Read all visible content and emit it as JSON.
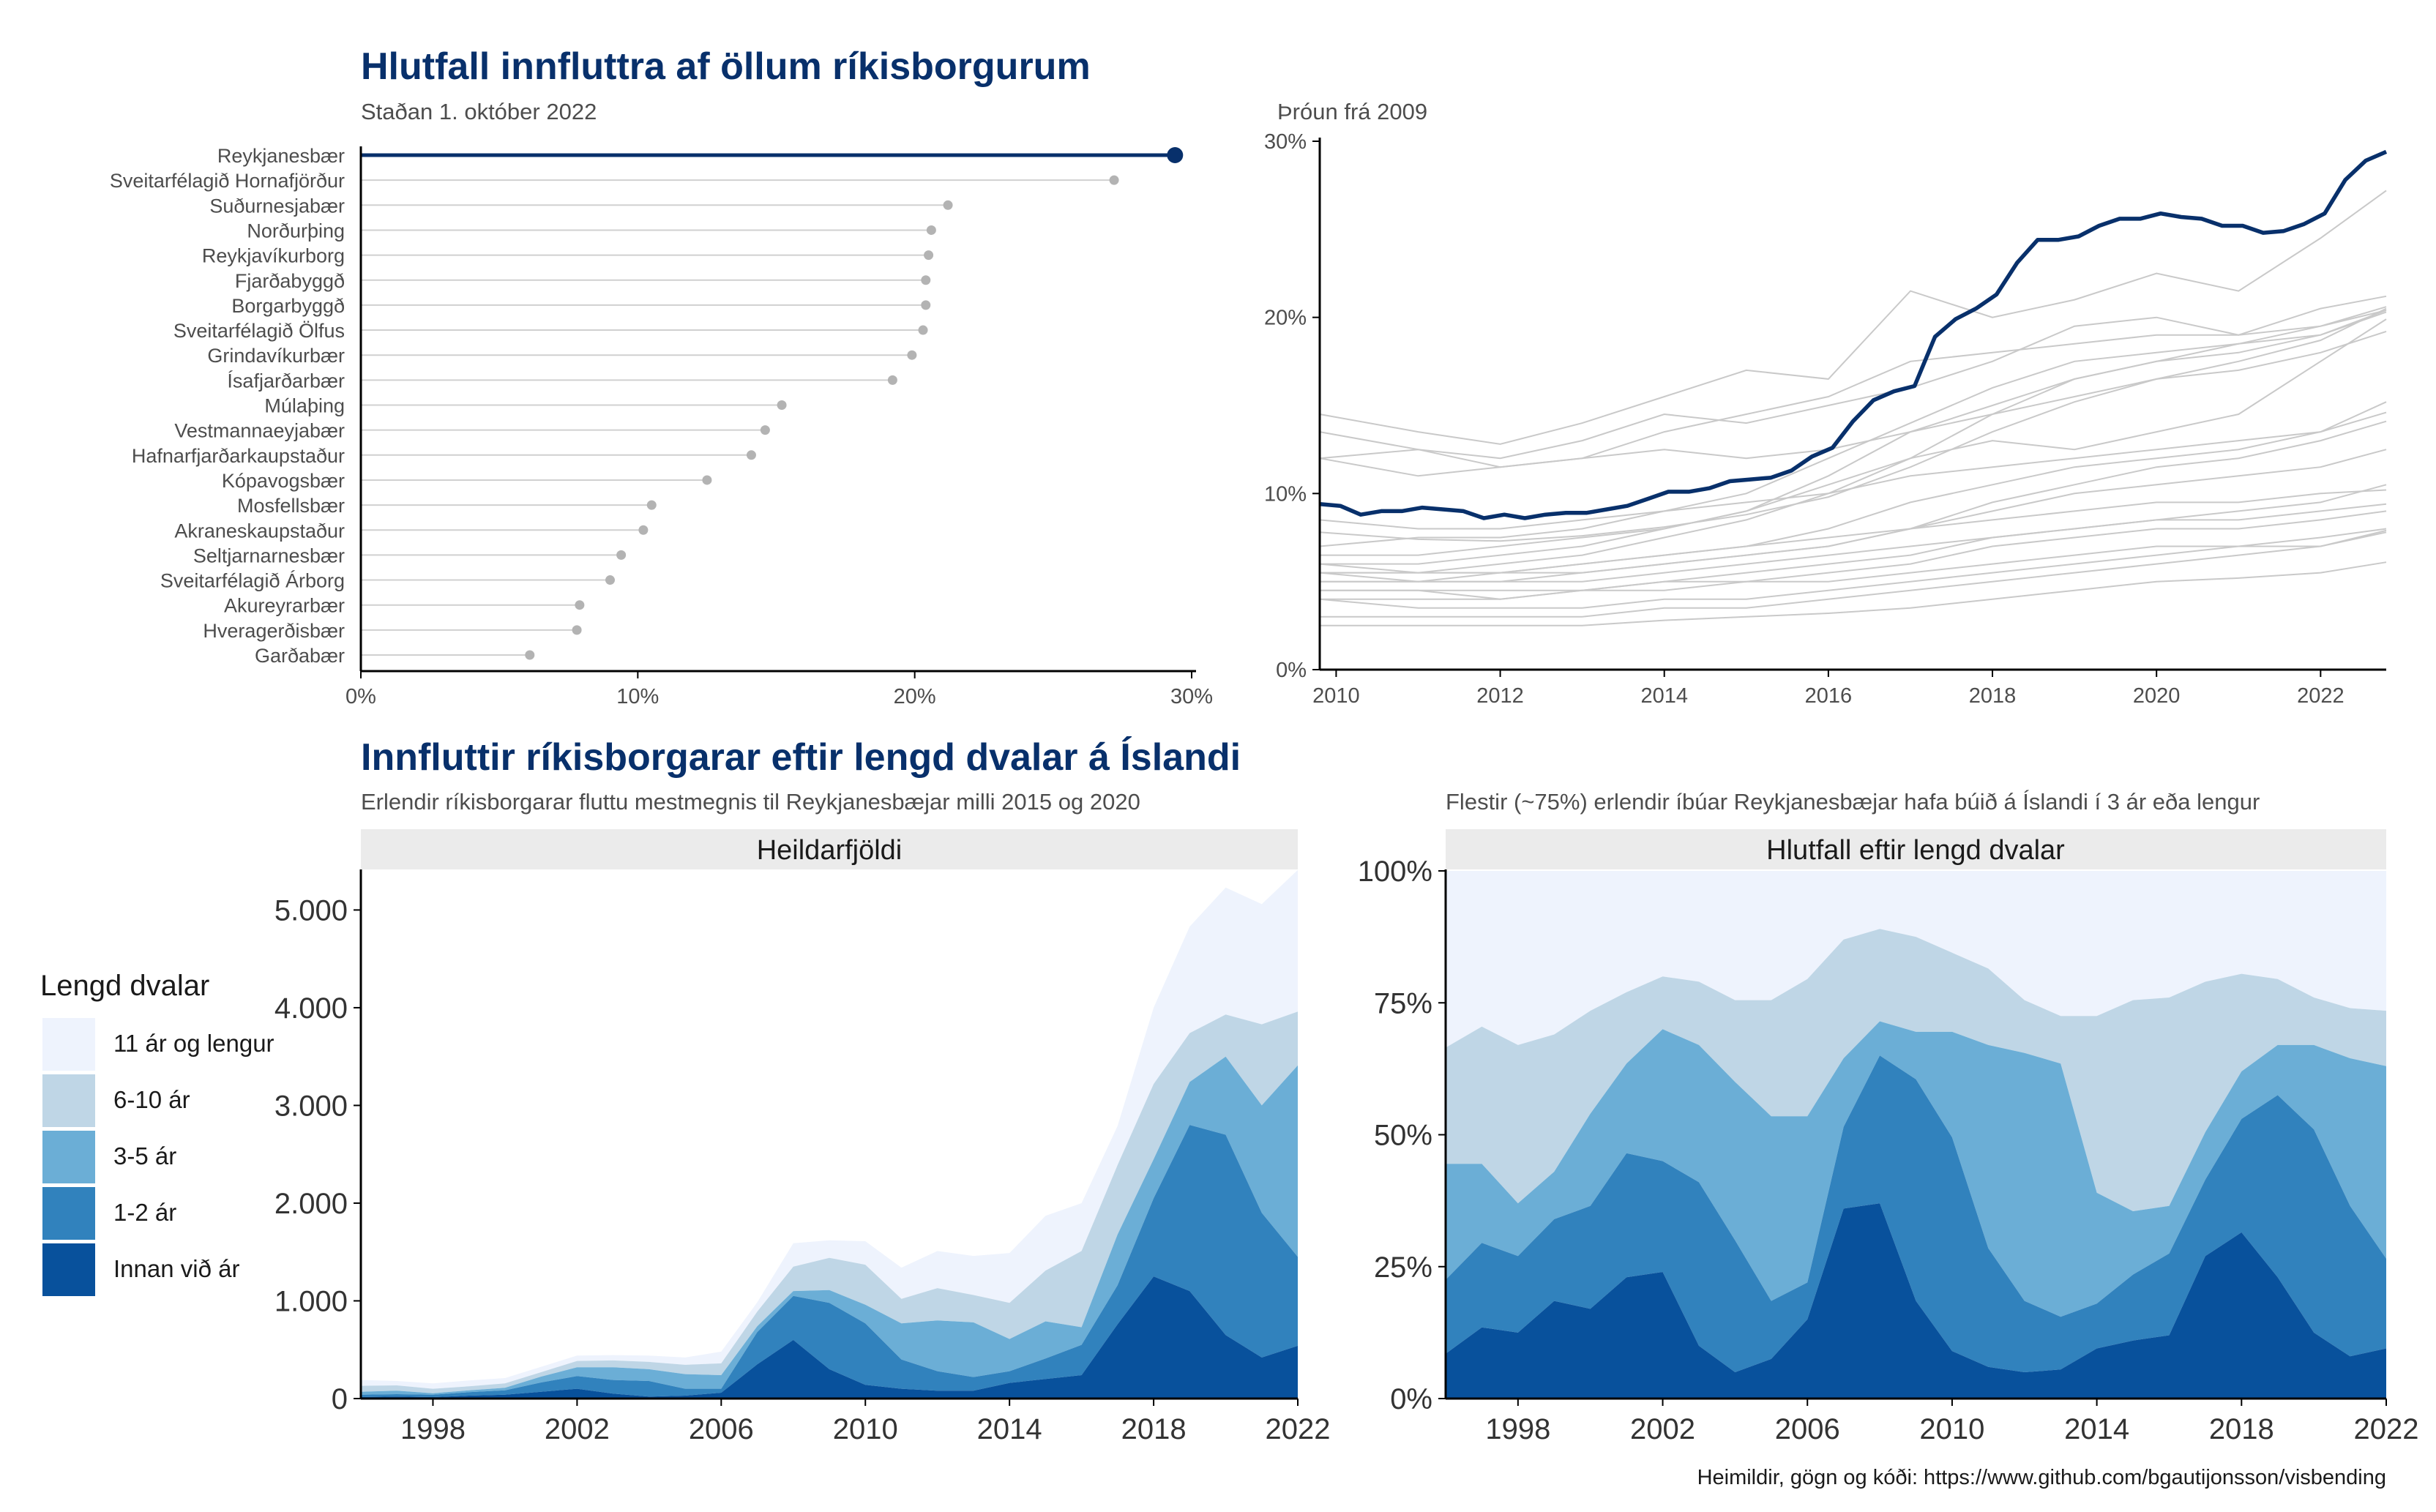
{
  "titles": {
    "top_title": "Hlutfall innfluttra af öllum ríkisborgurum",
    "top_left_subtitle": "Staðan 1. október 2022",
    "top_right_subtitle": "Þróun frá 2009",
    "bottom_title": "Innfluttir ríkisborgarar eftir lengd dvalar á Íslandi",
    "bottom_left_subtitle": "Erlendir ríkisborgarar fluttu mestmegnis til Reykjanesbæjar milli 2015 og 2020",
    "bottom_right_subtitle": "Flestir (~75%) erlendir íbúar Reykjanesbæjar hafa búið á Íslandi í 3 ár eða lengur",
    "strip_left": "Heildarfjöldi",
    "strip_right": "Hlutfall eftir lengd dvalar",
    "legend_title": "Lengd dvalar",
    "caption": "Heimildir, gögn og kóði: https://www.github.com/bgautijonsson/visbending"
  },
  "colors": {
    "highlight": "#08306b",
    "other_points": "#b3b3b3",
    "other_lines": "#c9c9c9",
    "strip_bg": "#ebebeb",
    "fills": [
      "#eef3fd",
      "#bfd6e6",
      "#6baed6",
      "#3182bd",
      "#08519c"
    ]
  },
  "chart_data": [
    {
      "type": "lollipop",
      "title": "Hlutfall innfluttra af öllum ríkisborgurum",
      "subtitle": "Staðan 1. október 2022",
      "highlight": "Reykjanesbær",
      "xlim": [
        0,
        30
      ],
      "xticks": [
        "0%",
        "10%",
        "20%",
        "30%"
      ],
      "categories": [
        "Reykjanesbær",
        "Sveitarfélagið Hornafjörður",
        "Suðurnesjabær",
        "Norðurþing",
        "Reykjavíkurborg",
        "Fjarðabyggð",
        "Borgarbyggð",
        "Sveitarfélagið Ölfus",
        "Grindavíkurbær",
        "Ísafjarðarbær",
        "Múlaþing",
        "Vestmannaeyjabær",
        "Hafnarfjarðarkaupstaður",
        "Kópavogsbær",
        "Mosfellsbær",
        "Akraneskaupstaður",
        "Seltjarnarnesbær",
        "Sveitarfélagið Árborg",
        "Akureyrarbær",
        "Hveragerðisbær",
        "Garðabær"
      ],
      "values": [
        29.4,
        27.2,
        21.2,
        20.6,
        20.5,
        20.4,
        20.4,
        20.3,
        19.9,
        19.2,
        15.2,
        14.6,
        14.1,
        12.5,
        10.5,
        10.2,
        9.4,
        9.0,
        7.9,
        7.8,
        6.1
      ]
    },
    {
      "type": "line",
      "subtitle": "Þróun frá 2009",
      "xlim": [
        2009.8,
        2022.8
      ],
      "ylim": [
        0,
        30
      ],
      "xticks": [
        2010,
        2012,
        2014,
        2016,
        2018,
        2020,
        2022
      ],
      "yticks": [
        "0%",
        "10%",
        "20%",
        "30%"
      ],
      "highlight": {
        "name": "Reykjanesbær",
        "x": [
          2009.8,
          2010.05,
          2010.3,
          2010.55,
          2010.8,
          2011.05,
          2011.3,
          2011.55,
          2011.8,
          2012.05,
          2012.3,
          2012.55,
          2012.8,
          2013.05,
          2013.3,
          2013.55,
          2013.8,
          2014.05,
          2014.3,
          2014.55,
          2014.8,
          2015.05,
          2015.3,
          2015.55,
          2015.8,
          2016.05,
          2016.3,
          2016.55,
          2016.8,
          2017.05,
          2017.3,
          2017.55,
          2017.8,
          2018.05,
          2018.3,
          2018.55,
          2018.8,
          2019.05,
          2019.3,
          2019.55,
          2019.8,
          2020.05,
          2020.3,
          2020.55,
          2020.8,
          2021.05,
          2021.3,
          2021.55,
          2021.8,
          2022.05,
          2022.3,
          2022.55,
          2022.8
        ],
        "y": [
          9.4,
          9.3,
          8.8,
          9.0,
          9.0,
          9.2,
          9.1,
          9.0,
          8.6,
          8.8,
          8.6,
          8.8,
          8.9,
          8.9,
          9.1,
          9.3,
          9.7,
          10.1,
          10.1,
          10.3,
          10.7,
          10.8,
          10.9,
          11.3,
          12.1,
          12.6,
          14.1,
          15.3,
          15.8,
          16.1,
          18.9,
          19.9,
          20.5,
          21.3,
          23.1,
          24.4,
          24.4,
          24.6,
          25.2,
          25.6,
          25.6,
          25.9,
          25.7,
          25.6,
          25.2,
          25.2,
          24.8,
          24.9,
          25.3,
          25.9,
          27.8,
          28.9,
          29.4
        ]
      },
      "others_years": [
        2009.8,
        2011,
        2012,
        2013,
        2014,
        2015,
        2016,
        2017,
        2018,
        2019,
        2020,
        2021,
        2022,
        2022.8
      ],
      "others": [
        {
          "name": "Sveitarfélagið Hornafjörður",
          "values": [
            14.5,
            13.5,
            12.8,
            14.0,
            15.5,
            17.0,
            16.5,
            21.5,
            20.0,
            21.0,
            22.5,
            21.5,
            24.5,
            27.2
          ]
        },
        {
          "name": "Suðurnesjabær",
          "values": [
            12.0,
            12.5,
            12.0,
            13.0,
            14.5,
            14.0,
            15.0,
            16.0,
            17.5,
            19.5,
            20.0,
            19.0,
            20.5,
            21.2
          ]
        },
        {
          "name": "Norðurþing",
          "values": [
            7.0,
            7.5,
            7.5,
            8.0,
            9.0,
            10.0,
            12.0,
            14.0,
            16.0,
            17.5,
            18.0,
            18.5,
            19.5,
            20.6
          ]
        },
        {
          "name": "Reykjavíkurborg",
          "values": [
            7.8,
            7.4,
            7.3,
            7.6,
            8.1,
            8.8,
            9.8,
            11.5,
            13.5,
            15.2,
            16.5,
            17.5,
            18.7,
            20.5
          ]
        },
        {
          "name": "Fjarðabyggð",
          "values": [
            13.5,
            12.5,
            11.5,
            12.0,
            13.5,
            14.5,
            15.5,
            17.5,
            18.0,
            18.5,
            19.0,
            19.0,
            19.5,
            20.4
          ]
        },
        {
          "name": "Borgarbyggð",
          "values": [
            5.5,
            5.5,
            6.0,
            6.5,
            7.5,
            8.5,
            10.0,
            12.0,
            14.5,
            16.5,
            17.5,
            18.5,
            19.0,
            20.4
          ]
        },
        {
          "name": "Sveitarfélagið Ölfus",
          "values": [
            6.0,
            6.0,
            6.5,
            7.0,
            8.0,
            9.0,
            11.0,
            13.5,
            15.0,
            16.5,
            17.5,
            18.0,
            19.0,
            20.3
          ]
        },
        {
          "name": "Grindavíkurbær",
          "values": [
            6.5,
            6.5,
            7.0,
            7.5,
            8.0,
            9.0,
            10.5,
            12.0,
            13.0,
            12.5,
            13.5,
            14.5,
            17.5,
            19.9
          ]
        },
        {
          "name": "Ísafjarðarbær",
          "values": [
            12.0,
            11.0,
            11.5,
            12.0,
            12.5,
            12.0,
            12.5,
            13.5,
            14.5,
            15.5,
            16.5,
            17.0,
            18.0,
            19.2
          ]
        },
        {
          "name": "Múlaþing",
          "values": [
            5.0,
            5.0,
            5.5,
            6.0,
            6.5,
            7.0,
            8.0,
            9.5,
            10.5,
            11.5,
            12.0,
            12.5,
            13.5,
            15.2
          ]
        },
        {
          "name": "Vestmannaeyjabær",
          "values": [
            8.5,
            8.0,
            8.0,
            8.5,
            9.0,
            9.5,
            10.0,
            11.0,
            11.5,
            12.0,
            12.5,
            13.0,
            13.5,
            14.6
          ]
        },
        {
          "name": "Hafnarfjarðarkaupstaður",
          "values": [
            5.5,
            5.5,
            5.5,
            5.5,
            6.0,
            6.5,
            7.0,
            8.0,
            9.5,
            10.5,
            11.5,
            12.0,
            13.0,
            14.1
          ]
        },
        {
          "name": "Kópavogsbær",
          "values": [
            5.0,
            5.0,
            5.0,
            5.5,
            6.0,
            6.5,
            7.0,
            8.0,
            9.0,
            10.0,
            10.5,
            11.0,
            11.5,
            12.5
          ]
        },
        {
          "name": "Mosfellsbær",
          "values": [
            4.0,
            4.0,
            4.0,
            4.5,
            5.0,
            5.5,
            6.0,
            6.5,
            7.5,
            8.0,
            8.5,
            9.0,
            9.5,
            10.5
          ]
        },
        {
          "name": "Akraneskaupstaður",
          "values": [
            6.0,
            5.5,
            5.5,
            6.0,
            6.5,
            7.0,
            7.5,
            8.0,
            8.5,
            9.0,
            9.5,
            9.5,
            10.0,
            10.2
          ]
        },
        {
          "name": "Seltjarnarnesbær",
          "values": [
            5.5,
            5.0,
            5.0,
            5.0,
            5.5,
            6.0,
            6.5,
            7.0,
            7.5,
            8.0,
            8.5,
            8.5,
            9.0,
            9.4
          ]
        },
        {
          "name": "Sveitarfélagið Árborg",
          "values": [
            4.5,
            4.5,
            4.5,
            4.5,
            5.0,
            5.0,
            5.5,
            6.0,
            7.0,
            7.5,
            8.0,
            8.0,
            8.5,
            9.0
          ]
        },
        {
          "name": "Akureyrarbær",
          "values": [
            3.0,
            3.0,
            3.0,
            3.0,
            3.5,
            3.5,
            4.0,
            4.5,
            5.0,
            5.5,
            6.0,
            6.5,
            7.0,
            7.9
          ]
        },
        {
          "name": "Hveragerðisbær",
          "values": [
            4.0,
            3.5,
            3.5,
            3.5,
            4.0,
            4.0,
            4.5,
            5.0,
            5.5,
            6.0,
            6.5,
            7.0,
            7.0,
            7.8
          ]
        },
        {
          "name": "Garðabær",
          "values": [
            2.5,
            2.5,
            2.5,
            2.5,
            2.8,
            3.0,
            3.2,
            3.5,
            4.0,
            4.5,
            5.0,
            5.2,
            5.5,
            6.1
          ]
        },
        {
          "name": "",
          "values": [
            4.5,
            4.5,
            4.0,
            4.5,
            4.5,
            5.0,
            5.0,
            5.5,
            6.0,
            6.5,
            7.0,
            7.0,
            7.5,
            8.0
          ]
        }
      ]
    },
    {
      "type": "area",
      "strip": "Heildarfjöldi",
      "stacked": true,
      "xlim": [
        1996,
        2022
      ],
      "ylim": [
        0,
        5400
      ],
      "xticks": [
        1998,
        2002,
        2006,
        2010,
        2014,
        2018,
        2022
      ],
      "yticks": [
        [
          0,
          "0"
        ],
        [
          1000,
          "1.000"
        ],
        [
          2000,
          "2.000"
        ],
        [
          3000,
          "3.000"
        ],
        [
          4000,
          "4.000"
        ],
        [
          5000,
          "5.000"
        ]
      ],
      "x": [
        1996,
        1997,
        1998,
        1999,
        2000,
        2001,
        2002,
        2003,
        2004,
        2005,
        2006,
        2007,
        2008,
        2009,
        2010,
        2011,
        2012,
        2013,
        2014,
        2015,
        2016,
        2017,
        2018,
        2019,
        2020,
        2021,
        2022
      ],
      "series": [
        {
          "name": "Innan við ár",
          "values": [
            15,
            20,
            15,
            30,
            40,
            70,
            100,
            50,
            20,
            30,
            60,
            350,
            600,
            300,
            140,
            100,
            80,
            80,
            160,
            200,
            240,
            760,
            1250,
            1100,
            650,
            420,
            540
          ]
        },
        {
          "name": "1-2 ár",
          "values": [
            25,
            25,
            25,
            35,
            45,
            95,
            130,
            140,
            160,
            70,
            40,
            330,
            450,
            680,
            630,
            300,
            200,
            140,
            120,
            210,
            310,
            400,
            800,
            1700,
            2050,
            1480,
            910
          ]
        },
        {
          "name": "3-5 ár",
          "values": [
            30,
            35,
            15,
            20,
            25,
            60,
            90,
            130,
            120,
            150,
            140,
            60,
            50,
            130,
            190,
            370,
            520,
            560,
            330,
            380,
            180,
            520,
            400,
            440,
            800,
            1100,
            1960
          ]
        },
        {
          "name": "6-10 ár",
          "values": [
            60,
            55,
            45,
            40,
            45,
            45,
            65,
            70,
            75,
            95,
            120,
            150,
            250,
            330,
            410,
            250,
            330,
            280,
            370,
            520,
            780,
            710,
            770,
            500,
            430,
            830,
            550
          ]
        },
        {
          "name": "11 ár og lengur",
          "values": [
            60,
            45,
            55,
            60,
            55,
            55,
            55,
            55,
            65,
            75,
            120,
            95,
            240,
            180,
            240,
            320,
            380,
            400,
            510,
            560,
            490,
            400,
            780,
            1090,
            1300,
            1230,
            1450
          ]
        }
      ]
    },
    {
      "type": "area",
      "strip": "Hlutfall eftir lengd dvalar",
      "stacked": true,
      "normalized": true,
      "xlim": [
        1996,
        2022
      ],
      "ylim": [
        0,
        100
      ],
      "xticks": [
        1998,
        2002,
        2006,
        2010,
        2014,
        2018,
        2022
      ],
      "yticks": [
        [
          0,
          "0%"
        ],
        [
          25,
          "25%"
        ],
        [
          50,
          "50%"
        ],
        [
          75,
          "75%"
        ],
        [
          100,
          "100%"
        ]
      ],
      "x": [
        1996,
        1997,
        1998,
        1999,
        2000,
        2001,
        2002,
        2003,
        2004,
        2005,
        2006,
        2007,
        2008,
        2009,
        2010,
        2011,
        2012,
        2013,
        2014,
        2015,
        2016,
        2017,
        2018,
        2019,
        2020,
        2021,
        2022
      ],
      "series": [
        {
          "name": "Innan við ár",
          "values": [
            8.5,
            13.5,
            12.5,
            18.5,
            17,
            23,
            24,
            10,
            5,
            7.5,
            15,
            36,
            37,
            18.5,
            9,
            6,
            5,
            5.5,
            9.5,
            11,
            12,
            27,
            31.5,
            23,
            12.5,
            8,
            9.5
          ]
        },
        {
          "name": "1-2 ár",
          "values": [
            14,
            16,
            14.5,
            15.5,
            19.5,
            23.5,
            21,
            31,
            25,
            11,
            7,
            15.5,
            28,
            42,
            40.5,
            22.5,
            13.5,
            10,
            8.5,
            12.5,
            15.5,
            14.5,
            21.5,
            34.5,
            38.5,
            28.5,
            17
          ]
        },
        {
          "name": "3-5 ár",
          "values": [
            22,
            15,
            10,
            9,
            17.5,
            17,
            25,
            26,
            30,
            35,
            31.5,
            13,
            6.5,
            9,
            20,
            38.5,
            47,
            48,
            21,
            12,
            9,
            9,
            9,
            9.5,
            16,
            28,
            36.5
          ]
        },
        {
          "name": "6-10 ár",
          "values": [
            22,
            26,
            30,
            26,
            19.5,
            13.5,
            10,
            12,
            15.5,
            22,
            26,
            22.5,
            17.5,
            18,
            15,
            14.5,
            10,
            9,
            33.5,
            40,
            39.5,
            28.5,
            18.5,
            12.5,
            9,
            9.5,
            10.5
          ]
        },
        {
          "name": "11 ár og lengur",
          "values": [
            33.5,
            29.5,
            33,
            31,
            26.5,
            23,
            20,
            21,
            24.5,
            24.5,
            20.5,
            13,
            11,
            12.5,
            15.5,
            18.5,
            24.5,
            27.5,
            27.5,
            24.5,
            24,
            21,
            19.5,
            20.5,
            24,
            26,
            26.5
          ]
        }
      ]
    }
  ],
  "legend_items": [
    "11 ár og lengur",
    "6-10 ár",
    "3-5 ár",
    "1-2 ár",
    "Innan við ár"
  ]
}
